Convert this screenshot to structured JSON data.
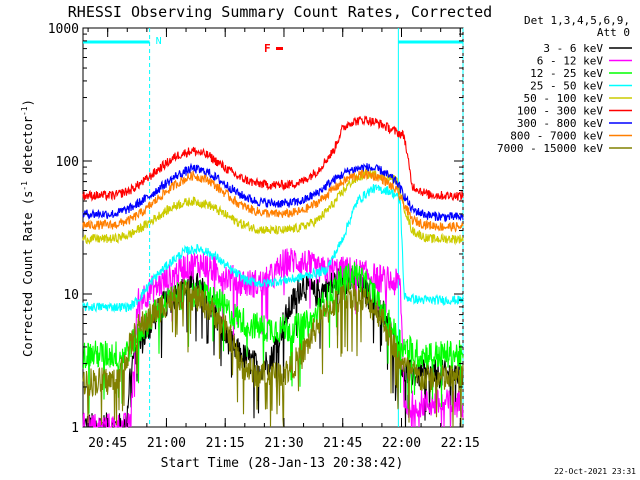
{
  "chart_data": {
    "type": "line",
    "title": "RHESSI Observing Summary Count Rates, Corrected",
    "xlabel": "Start Time (28-Jan-13 20:38:42)",
    "ylabel": "Corrected Count Rate (s",
    "ylabel_sup1": "-1",
    "ylabel_mid": " detector",
    "ylabel_sup2": "-1",
    "ylabel_end": ")",
    "yscale": "log",
    "ylim": [
      1,
      1000
    ],
    "xlim_minutes_after_2038_42": [
      0,
      97
    ],
    "x_ticks": [
      {
        "label": "20:45",
        "minute": 6.3
      },
      {
        "label": "21:00",
        "minute": 21.3
      },
      {
        "label": "21:15",
        "minute": 36.3
      },
      {
        "label": "21:30",
        "minute": 51.3
      },
      {
        "label": "21:45",
        "minute": 66.3
      },
      {
        "label": "22:00",
        "minute": 81.3
      },
      {
        "label": "22:15",
        "minute": 96.3
      }
    ],
    "y_ticks": [
      {
        "label": "1",
        "value": 1
      },
      {
        "label": "10",
        "value": 10
      },
      {
        "label": "100",
        "value": 100
      },
      {
        "label": "1000",
        "value": 1000
      }
    ],
    "legend_header": [
      "Det 1,3,4,5,6,9,",
      "Att 0"
    ],
    "legend_position": "right",
    "series": [
      {
        "name": "3 - 6 keV",
        "color": "#000000",
        "x": [
          0,
          11,
          12,
          13,
          16,
          18,
          20,
          24,
          28,
          30,
          33,
          36,
          40,
          45,
          48,
          50,
          53,
          56,
          59,
          62,
          66,
          70,
          74,
          77,
          80,
          82,
          97
        ],
        "y": [
          1,
          1,
          2.5,
          3.5,
          5,
          6.5,
          8,
          10,
          12,
          11,
          8,
          5,
          3.5,
          2.8,
          3.2,
          5,
          8,
          12,
          10,
          11,
          13,
          12,
          9,
          7,
          4,
          2.5,
          2.5
        ]
      },
      {
        "name": "6 - 12 keV",
        "color": "#ff00ff",
        "x": [
          0,
          12,
          13,
          14,
          18,
          22,
          26,
          30,
          34,
          38,
          42,
          46,
          49,
          51,
          54,
          57,
          60,
          64,
          68,
          72,
          76,
          80,
          81,
          82,
          97
        ],
        "y": [
          1,
          1,
          3,
          9,
          11,
          13,
          16,
          17,
          15,
          13,
          12,
          12,
          14,
          17,
          18,
          17,
          15,
          15,
          15,
          14,
          13,
          12,
          12,
          1.5,
          1.5
        ]
      },
      {
        "name": "12 - 25 keV",
        "color": "#00ff00",
        "x": [
          0,
          10,
          12,
          14,
          18,
          22,
          26,
          30,
          34,
          38,
          42,
          46,
          50,
          54,
          58,
          62,
          66,
          70,
          74,
          78,
          82,
          86,
          97
        ],
        "y": [
          3.5,
          3.5,
          4,
          5,
          7,
          9,
          10,
          10,
          9,
          7,
          6,
          5.5,
          5.5,
          5.5,
          6,
          9,
          13,
          14,
          10,
          6,
          4,
          3.5,
          3.5
        ]
      },
      {
        "name": "25 - 50 keV",
        "color": "#00ffff",
        "x": [
          0,
          12,
          14,
          18,
          22,
          26,
          30,
          34,
          38,
          42,
          46,
          50,
          54,
          58,
          62,
          66,
          70,
          74,
          78,
          80,
          81,
          82,
          86,
          97
        ],
        "y": [
          8,
          8,
          9,
          13,
          17,
          21,
          22,
          19,
          15,
          12.5,
          12,
          12.5,
          13,
          14,
          15,
          25,
          50,
          62,
          60,
          55,
          50,
          9.5,
          9,
          9
        ]
      },
      {
        "name": "50 - 100 keV",
        "color": "#cccc00",
        "x": [
          0,
          8,
          12,
          16,
          20,
          24,
          28,
          32,
          36,
          40,
          44,
          48,
          52,
          56,
          60,
          64,
          68,
          72,
          76,
          80,
          82,
          84,
          88,
          92,
          97
        ],
        "y": [
          26,
          26,
          28,
          33,
          40,
          47,
          50,
          47,
          40,
          34,
          31,
          30,
          30,
          32,
          36,
          48,
          68,
          80,
          78,
          72,
          45,
          30,
          26,
          26,
          26
        ]
      },
      {
        "name": "100 - 300 keV",
        "color": "#ff0000",
        "x": [
          0,
          8,
          12,
          16,
          20,
          24,
          28,
          32,
          36,
          40,
          44,
          48,
          52,
          56,
          60,
          64,
          66,
          68,
          72,
          76,
          80,
          82,
          84,
          88,
          92,
          97
        ],
        "y": [
          55,
          55,
          60,
          72,
          90,
          110,
          120,
          110,
          90,
          75,
          68,
          66,
          66,
          70,
          85,
          120,
          170,
          195,
          205,
          190,
          165,
          155,
          65,
          56,
          55,
          55
        ]
      },
      {
        "name": "300 - 800 keV",
        "color": "#0000ff",
        "x": [
          0,
          8,
          12,
          16,
          20,
          24,
          28,
          32,
          36,
          40,
          44,
          48,
          52,
          56,
          60,
          64,
          68,
          72,
          76,
          80,
          82,
          84,
          88,
          92,
          97
        ],
        "y": [
          40,
          40,
          44,
          52,
          64,
          78,
          88,
          82,
          68,
          56,
          50,
          48,
          48,
          50,
          58,
          72,
          85,
          90,
          85,
          70,
          55,
          43,
          39,
          38,
          38
        ]
      },
      {
        "name": "800 - 7000 keV",
        "color": "#ff7f00",
        "x": [
          0,
          8,
          12,
          16,
          20,
          24,
          28,
          32,
          36,
          40,
          44,
          48,
          52,
          56,
          60,
          64,
          68,
          72,
          76,
          80,
          82,
          84,
          88,
          92,
          97
        ],
        "y": [
          33,
          33,
          36,
          43,
          55,
          68,
          78,
          72,
          58,
          47,
          42,
          40,
          40,
          42,
          49,
          62,
          75,
          80,
          75,
          60,
          47,
          36,
          33,
          32,
          32
        ]
      },
      {
        "name": "7000 - 15000 keV",
        "color": "#808000",
        "x": [
          0,
          8,
          10,
          12,
          14,
          18,
          22,
          26,
          30,
          34,
          38,
          40,
          44,
          48,
          52,
          56,
          60,
          64,
          68,
          72,
          76,
          78,
          82,
          86,
          97
        ],
        "y": [
          2.2,
          2.2,
          2.8,
          4,
          5.5,
          7,
          9,
          10,
          9,
          7,
          4.5,
          3,
          2.5,
          2.5,
          2.6,
          3.5,
          6,
          8.5,
          10,
          9,
          7,
          5,
          2.8,
          2.3,
          2.3
        ]
      }
    ],
    "annotations": {
      "flag_line": {
        "label": "N",
        "color": "#00ffff",
        "level": 800,
        "segments": [
          [
            0,
            17
          ],
          [
            80.5,
            97
          ]
        ]
      },
      "flare_marker": {
        "label": "F",
        "color": "#ff0000"
      },
      "vertical_markers": [
        17,
        80.5,
        97
      ]
    },
    "timestamp": "22-Oct-2021 23:31"
  }
}
